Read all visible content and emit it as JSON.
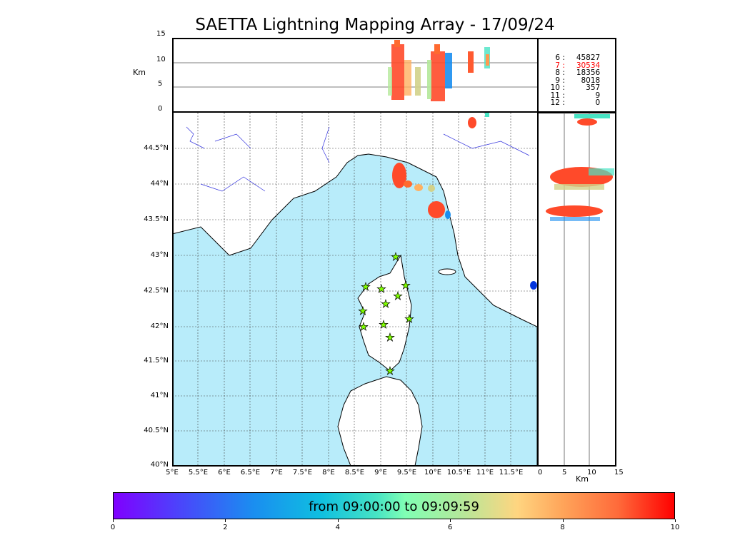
{
  "title": "SAETTA Lightning Mapping Array - 17/09/24",
  "altitude_panel": {
    "unit_label": "Km",
    "y_ticks": [
      "15",
      "10",
      "5",
      "0"
    ]
  },
  "side_panel": {
    "unit_label": "Km",
    "x_ticks": [
      "0",
      "5",
      "10",
      "15"
    ]
  },
  "map": {
    "lat_labels": [
      "44.5°N",
      "44°N",
      "43.5°N",
      "43°N",
      "42.5°N",
      "42°N",
      "41.5°N",
      "41°N",
      "40.5°N",
      "40°N"
    ],
    "lon_labels": [
      "5°E",
      "5.5°E",
      "6°E",
      "6.5°E",
      "7°E",
      "7.5°E",
      "8°E",
      "8.5°E",
      "9°E",
      "9.5°E",
      "10°E",
      "10.5°E",
      "11°E",
      "11.5°E"
    ],
    "sea_color": "#b8ecfa",
    "station_color": "#7fff00"
  },
  "station_counts": [
    {
      "stations": "6",
      "count": "45827",
      "color": "#000000"
    },
    {
      "stations": "7",
      "count": "30534",
      "color": "#ff0000"
    },
    {
      "stations": "8",
      "count": "18356",
      "color": "#000000"
    },
    {
      "stations": "9",
      "count": "8018",
      "color": "#000000"
    },
    {
      "stations": "10",
      "count": "357",
      "color": "#000000"
    },
    {
      "stations": "11",
      "count": "9",
      "color": "#000000"
    },
    {
      "stations": "12",
      "count": "0",
      "color": "#000000"
    }
  ],
  "colorbar": {
    "label": "from 09:00:00 to 09:09:59",
    "ticks": [
      "0",
      "2",
      "4",
      "6",
      "8",
      "10"
    ],
    "min": 0,
    "max": 10
  }
}
